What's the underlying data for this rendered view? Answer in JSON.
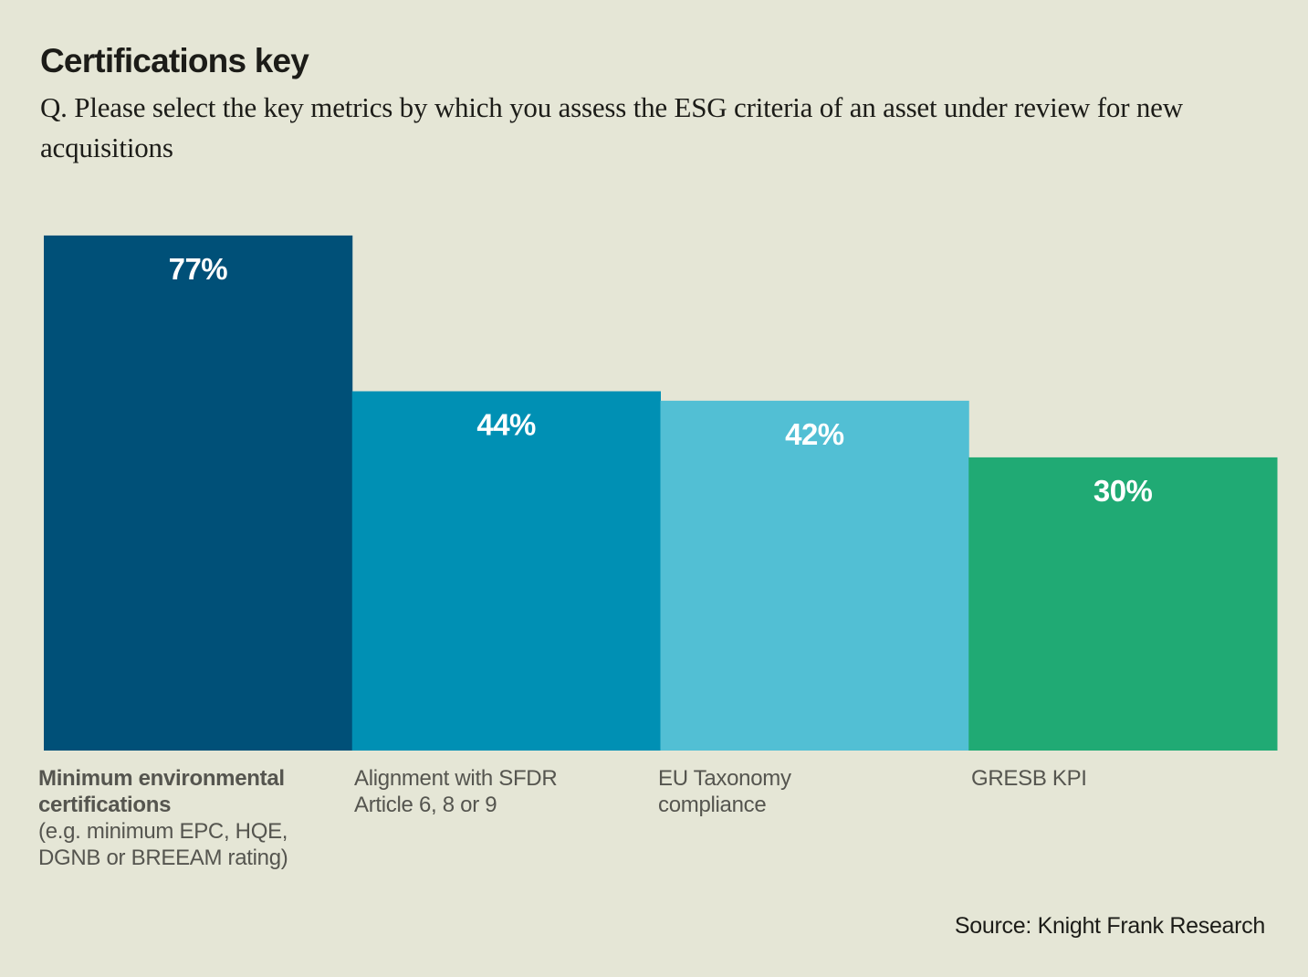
{
  "header": {
    "title": "Certifications key",
    "subtitle": "Q. Please select the key metrics by which you assess the ESG criteria of an asset under review for new acquisitions"
  },
  "footer": {
    "source": "Source: Knight Frank Research"
  },
  "chart_data": {
    "type": "bar",
    "title": "Certifications key",
    "subtitle": "Q. Please select the key metrics by which you assess the ESG criteria of an asset under review for new acquisitions",
    "xlabel": "",
    "ylabel": "",
    "grid": false,
    "legend": "none",
    "categories": [
      "Minimum environmental certifications (e.g. minimum EPC, HQE, DGNB or BREEAM rating)",
      "Alignment with SFDR Article 6, 8 or 9",
      "EU Taxonomy compliance",
      "GRESB KPI"
    ],
    "category_labels": [
      {
        "strong": "Minimum environmental certifications",
        "rest": "(e.g. minimum EPC, HQE, DGNB or BREEAM rating)"
      },
      {
        "strong": "",
        "rest": "Alignment with SFDR Article 6, 8 or 9"
      },
      {
        "strong": "",
        "rest": "EU Taxonomy compliance"
      },
      {
        "strong": "",
        "rest": "GRESB KPI"
      }
    ],
    "values": [
      77,
      44,
      42,
      30
    ],
    "value_labels": [
      "77%",
      "44%",
      "42%",
      "30%"
    ],
    "unit": "%",
    "colors": [
      "#005078",
      "#0090b4",
      "#52bfd4",
      "#20aa74"
    ]
  }
}
